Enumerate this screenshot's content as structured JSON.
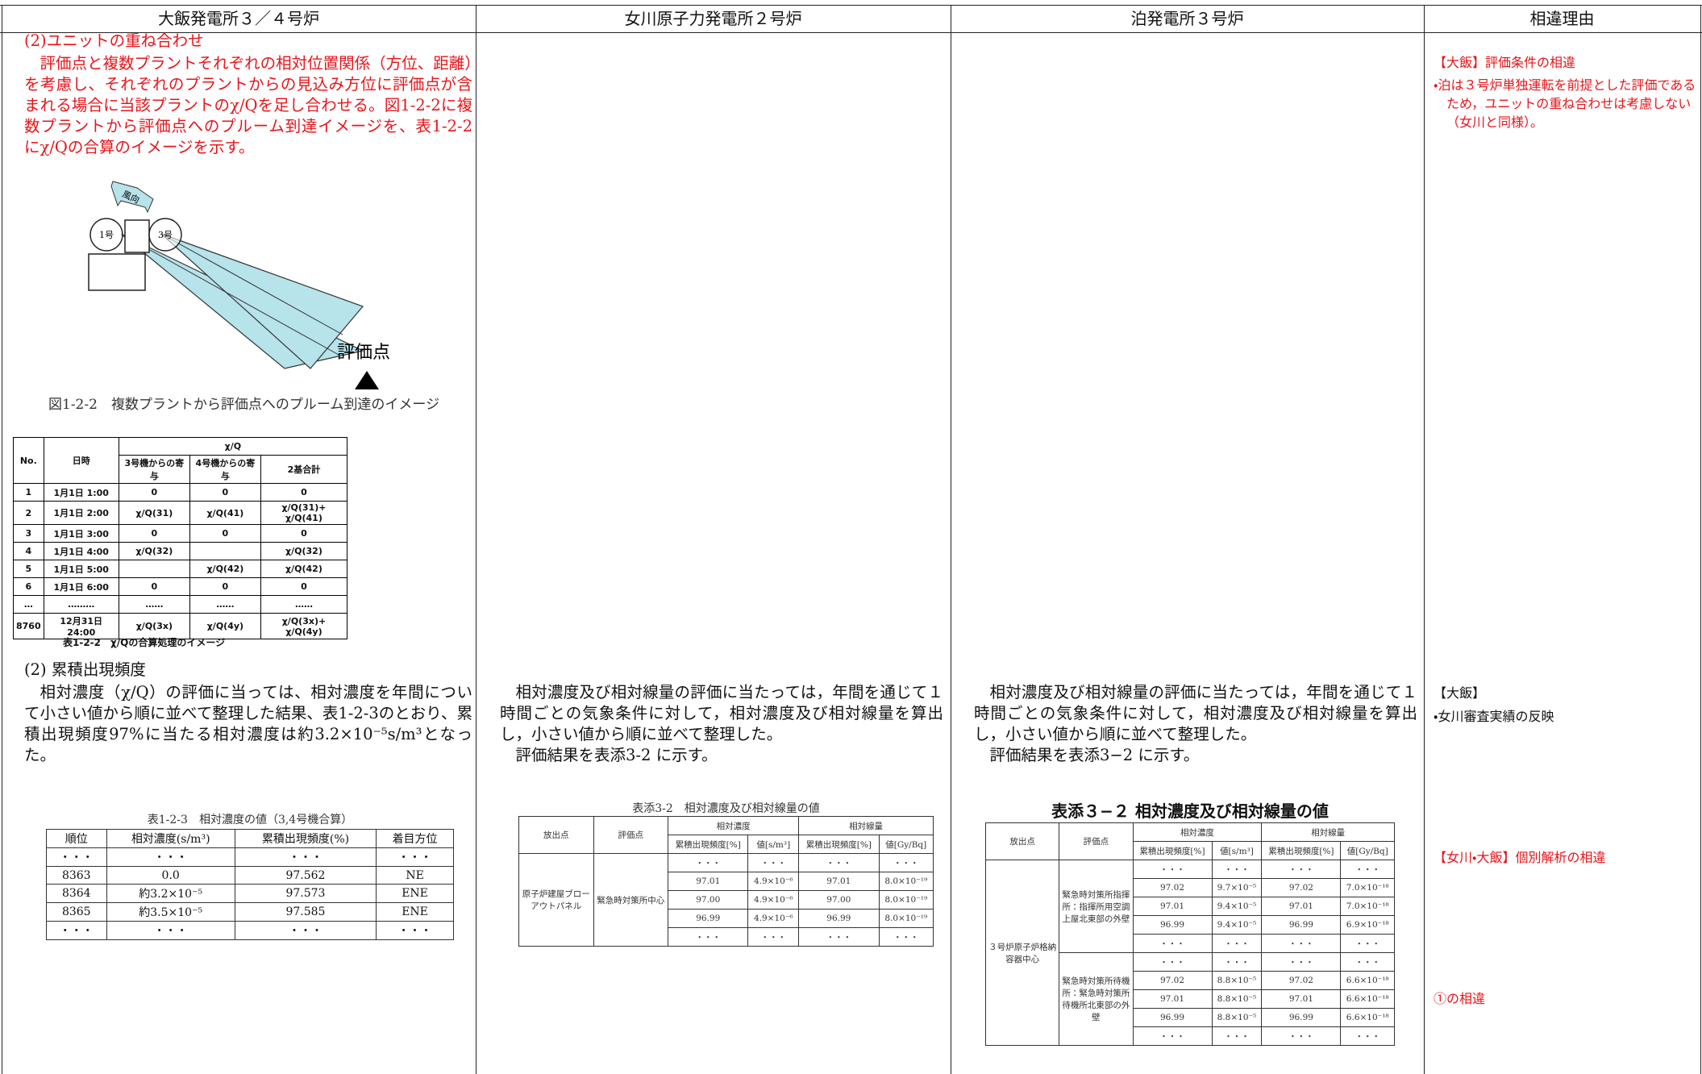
{
  "header": [
    "大飯発電所３／４号炉",
    "女川原子力発電所２号炉",
    "泊発電所３号炉",
    "相違理由"
  ],
  "ohi": {
    "section1": {
      "heading": "(2)ユニットの重ね合わせ",
      "paragraph": "評価点と複数プラントそれぞれの相対位置関係（方位、距離）を考慮し、それぞれのプラントからの見込み方位に評価点が含まれる場合に当該プラントのχ/Qを足し合わせる。図1-2-2に複数プラントから評価点へのプルーム到達イメージを、表1-2-2にχ/Qの合算のイメージを示す。"
    },
    "figure": {
      "wind": "風向",
      "unit_a": "1号",
      "unit_b": "3号",
      "point": "評価点",
      "caption": "図1-2-2　複数プラントから評価点へのプルーム到達のイメージ"
    },
    "table_chi": {
      "group": "χ/Q",
      "headers": [
        "No.",
        "日時",
        "3号機からの寄与",
        "4号機からの寄与",
        "2基合計"
      ],
      "rows": [
        [
          "1",
          "1月1日 1:00",
          "0",
          "0",
          "0"
        ],
        [
          "2",
          "1月1日 2:00",
          "χ/Q(31)",
          "χ/Q(41)",
          "χ/Q(31)+ χ/Q(41)"
        ],
        [
          "3",
          "1月1日 3:00",
          "0",
          "0",
          "0"
        ],
        [
          "4",
          "1月1日 4:00",
          "χ/Q(32)",
          null,
          "χ/Q(32)"
        ],
        [
          "5",
          "1月1日 5:00",
          null,
          "χ/Q(42)",
          "χ/Q(42)"
        ],
        [
          "6",
          "1月1日 6:00",
          "0",
          "0",
          "0"
        ],
        [
          "…",
          "………",
          "……",
          "……",
          "……"
        ],
        [
          "8760",
          "12月31日 24:00",
          "χ/Q(3x)",
          "χ/Q(4y)",
          "χ/Q(3x)+ χ/Q(4y)"
        ]
      ],
      "caption": "表1-2-2　χ/Qの合算処理のイメージ"
    },
    "section2": {
      "heading": "(2) 累積出現頻度",
      "paragraph": "相対濃度（χ/Q）の評価に当っては、相対濃度を年間について小さい値から順に並べて整理した結果、表1-2-3のとおり、累積出現頻度97%に当たる相対濃度は約3.2×10⁻⁵s/m³となった。"
    },
    "table_rank": {
      "caption": "表1-2-3　相対濃度の値（3,4号機合算）",
      "headers": [
        "順位",
        "相対濃度(s/m³)",
        "累積出現頻度(%)",
        "着目方位"
      ],
      "rows": [
        [
          "・・・",
          "・・・",
          "・・・",
          "・・・"
        ],
        [
          "8363",
          "0.0",
          "97.562",
          "NE"
        ],
        [
          "8364",
          "約3.2×10⁻⁵",
          "97.573",
          "ENE"
        ],
        [
          "8365",
          "約3.5×10⁻⁵",
          "97.585",
          "ENE"
        ],
        [
          "・・・",
          "・・・",
          "・・・",
          "・・・"
        ]
      ]
    }
  },
  "onagawa": {
    "paragraph": "相対濃度及び相対線量の評価に当たっては，年間を通じて１時間ごとの気象条件に対して，相対濃度及び相対線量を算出し，小さい値から順に並べて整理した。",
    "paragraph2": "評価結果を表添3-2 に示す。",
    "table": {
      "caption": "表添3-2　相対濃度及び相対線量の値",
      "release_h": "放出点",
      "point_h": "評価点",
      "group1": "相対濃度",
      "group2": "相対線量",
      "sub": [
        "累積出現頻度[%]",
        "値[s/m³]",
        "累積出現頻度[%]",
        "値[Gy/Bq]"
      ],
      "release": "原子炉建屋ブローアウトパネル",
      "groups": [
        {
          "point": "緊急時対策所中心",
          "rows": [
            [
              "・・・",
              "・・・",
              "・・・",
              "・・・"
            ],
            [
              "97.01",
              "4.9×10⁻⁶",
              "97.01",
              "8.0×10⁻¹⁹"
            ],
            [
              "97.00",
              "4.9×10⁻⁶",
              "97.00",
              "8.0×10⁻¹⁹"
            ],
            [
              "96.99",
              "4.9×10⁻⁶",
              "96.99",
              "8.0×10⁻¹⁹"
            ],
            [
              "・・・",
              "・・・",
              "・・・",
              "・・・"
            ]
          ]
        }
      ]
    }
  },
  "tomari": {
    "paragraph": "相対濃度及び相対線量の評価に当たっては，年間を通じて１時間ごとの気象条件に対して，相対濃度及び相対線量を算出し，小さい値から順に並べて整理した。",
    "paragraph2": "評価結果を表添3−2 に示す。",
    "table": {
      "caption": "表添３−２ 相対濃度及び相対線量の値",
      "release_h": "放出点",
      "point_h": "評価点",
      "group1": "相対濃度",
      "group2": "相対線量",
      "sub": [
        "累積出現頻度[%]",
        "値[s/m³]",
        "累積出現頻度[%]",
        "値[Gy/Bq]"
      ],
      "release": "３号炉原子炉格納容器中心",
      "groups": [
        {
          "point": "緊急時対策所指揮所：指揮所用空調上屋北東部の外壁",
          "rows": [
            [
              "・・・",
              "・・・",
              "・・・",
              "・・・"
            ],
            [
              "97.02",
              "9.7×10⁻⁵",
              "97.02",
              "7.0×10⁻¹⁸"
            ],
            [
              "97.01",
              "9.4×10⁻⁵",
              "97.01",
              "7.0×10⁻¹⁸"
            ],
            [
              "96.99",
              "9.4×10⁻⁵",
              "96.99",
              "6.9×10⁻¹⁸"
            ],
            [
              "・・・",
              "・・・",
              "・・・",
              "・・・"
            ]
          ]
        },
        {
          "point": "緊急時対策所待機所：緊急時対策所待機所北東部の外壁",
          "rows": [
            [
              "・・・",
              "・・・",
              "・・・",
              "・・・"
            ],
            [
              "97.02",
              "8.8×10⁻⁵",
              "97.02",
              "6.6×10⁻¹⁸"
            ],
            [
              "97.01",
              "8.8×10⁻⁵",
              "97.01",
              "6.6×10⁻¹⁸"
            ],
            [
              "96.99",
              "8.8×10⁻⁵",
              "96.99",
              "6.6×10⁻¹⁸"
            ],
            [
              "・・・",
              "・・・",
              "・・・",
              "・・・"
            ]
          ]
        }
      ]
    }
  },
  "reasons": [
    "【大飯】評価条件の相違",
    "・泊は３号炉単独運転を前提とした評価であるため，ユニットの重ね合わせは考慮しない（女川と同様）。",
    "【大飯】",
    "・女川審査実績の反映",
    "【女川・大飯】個別解析の相違",
    "①の相違"
  ]
}
